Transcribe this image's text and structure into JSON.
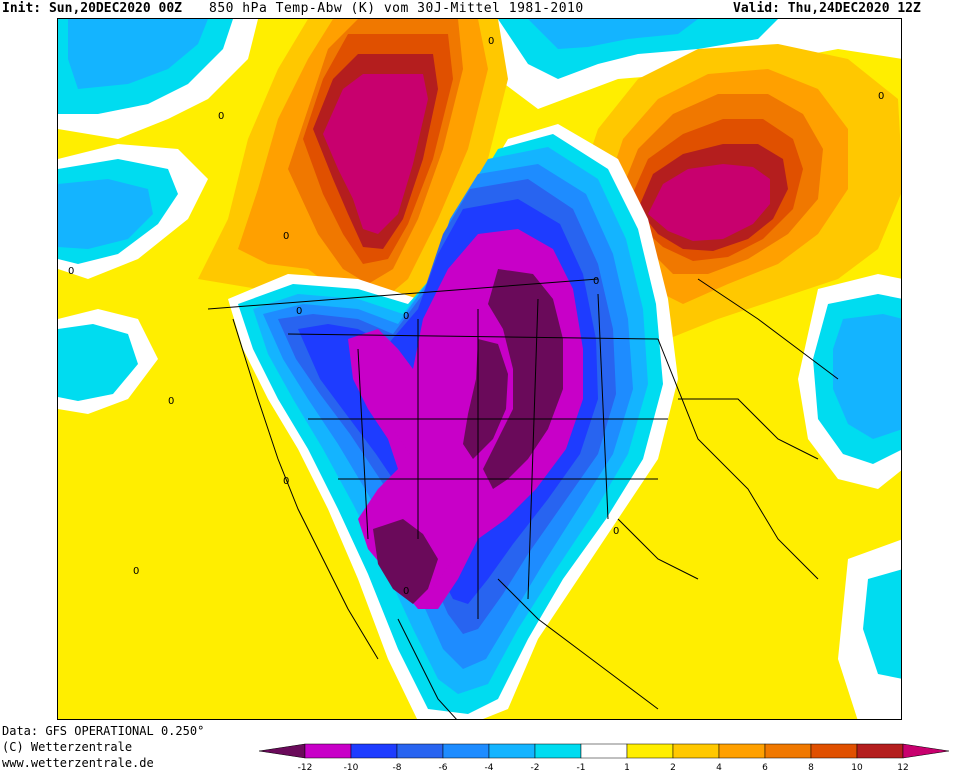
{
  "header": {
    "init": "Init: Sun,20DEC2020 00Z",
    "title": "850 hPa Temp-Abw (K) vom 30J-Mittel 1981-2010",
    "valid": "Valid: Thu,24DEC2020 12Z"
  },
  "footer": {
    "data_source": "Data: GFS OPERATIONAL 0.250°",
    "copyright": "(C) Wetterzentrale",
    "website": "www.wetterzentrale.de"
  },
  "colorbar": {
    "colors": [
      "#6a0a5a",
      "#c800c8",
      "#1e3cff",
      "#2864f0",
      "#1e8cff",
      "#14b4ff",
      "#00dcf0",
      "#ffffff",
      "#ffee00",
      "#ffc800",
      "#ffa000",
      "#f07800",
      "#e05000",
      "#b41e1e",
      "#c8006e"
    ],
    "labels": [
      "-12",
      "-10",
      "-8",
      "-6",
      "-4",
      "-2",
      "-1",
      "1",
      "2",
      "4",
      "6",
      "8",
      "10",
      "12"
    ]
  },
  "map": {
    "contour_labels": [
      "0",
      "0",
      "0",
      "0",
      "0",
      "0",
      "0",
      "0",
      "0",
      "0",
      "0",
      "0",
      "0"
    ],
    "features": {
      "cold_anomaly": "central North America",
      "warm_anomalies": [
        "northwest Canada",
        "eastern Canada"
      ]
    }
  }
}
